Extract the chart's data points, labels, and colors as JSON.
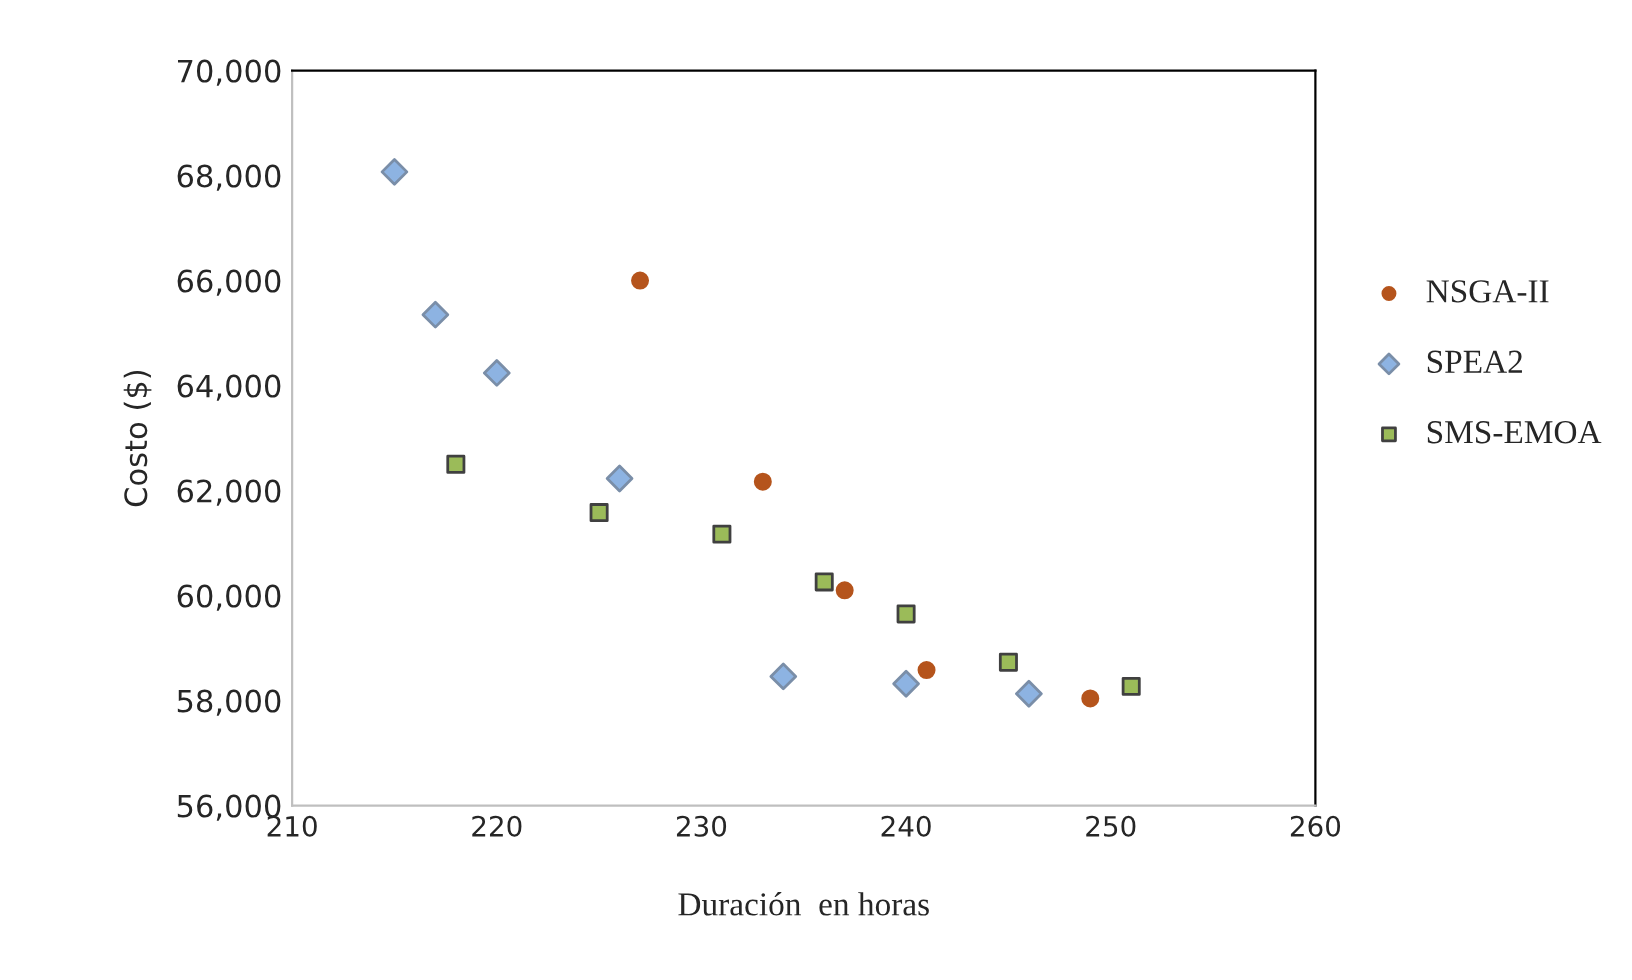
{
  "chart_data": {
    "type": "scatter",
    "xlabel": "Duración  en horas",
    "ylabel": "Costo ($)",
    "xlim": [
      210,
      260
    ],
    "xticks": [
      210,
      220,
      230,
      240,
      250,
      260
    ],
    "ylim": [
      56000,
      70000
    ],
    "yticks": [
      {
        "value": 56000,
        "label": "56,000"
      },
      {
        "value": 58000,
        "label": "58,000"
      },
      {
        "value": 60000,
        "label": "60,000"
      },
      {
        "value": 62000,
        "label": "62,000"
      },
      {
        "value": 64000,
        "label": "64,000"
      },
      {
        "value": 66000,
        "label": "66,000"
      },
      {
        "value": 68000,
        "label": "68,000"
      },
      {
        "value": 70000,
        "label": "70,000"
      }
    ],
    "grid": false,
    "legend": "right",
    "series": [
      {
        "name": "NSGA-II",
        "color": "#b5541c",
        "marker": "circle",
        "x": [
          227,
          233,
          237,
          241,
          249
        ],
        "values": [
          66000,
          62170,
          60100,
          58580,
          58040
        ]
      },
      {
        "name": "SPEA2",
        "color": "#8db3e2",
        "marker": "diamond",
        "x": [
          215,
          217,
          220,
          226,
          234,
          240,
          246
        ],
        "values": [
          68070,
          65350,
          64240,
          62230,
          58460,
          58320,
          58130
        ]
      },
      {
        "name": "SMS-EMOA",
        "color": "#9bbb59",
        "marker": "square",
        "x": [
          218,
          225,
          231,
          236,
          240,
          245,
          251
        ],
        "values": [
          62500,
          61580,
          61170,
          60260,
          59650,
          58730,
          58270
        ]
      }
    ]
  }
}
